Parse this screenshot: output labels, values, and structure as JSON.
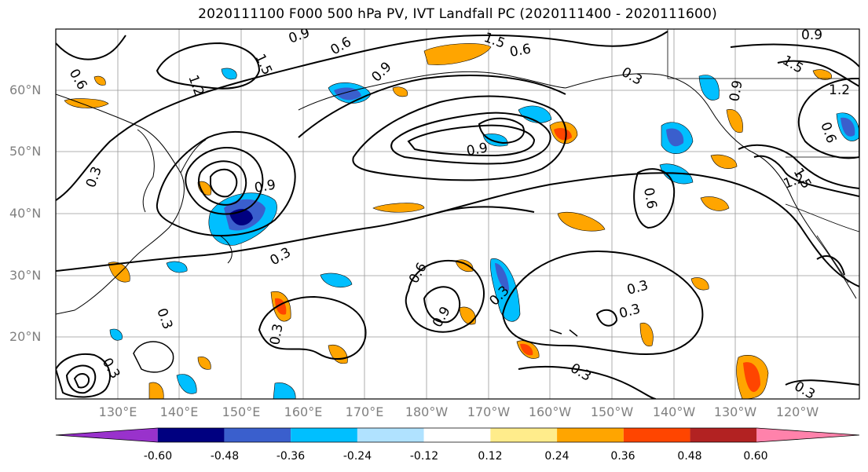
{
  "title": "2020111100 F000 500 hPa PV, IVT Landfall PC (2020111400 - 2020111600)",
  "lat_labels": [
    "60°N",
    "50°N",
    "40°N",
    "30°N",
    "20°N"
  ],
  "lon_labels": [
    "130°E",
    "140°E",
    "150°E",
    "160°E",
    "170°E",
    "180°W",
    "170°W",
    "160°W",
    "150°W",
    "140°W",
    "130°W",
    "120°W"
  ],
  "contour_labels": [
    "0.6",
    "0.3",
    "0.9",
    "1.2",
    "1.5"
  ],
  "colorbar": {
    "ticks": [
      "-0.60",
      "-0.48",
      "-0.36",
      "-0.24",
      "-0.12",
      "0.12",
      "0.24",
      "0.36",
      "0.48",
      "0.60"
    ],
    "colors": [
      "#9932cc",
      "#000080",
      "#3a5fcd",
      "#00bfff",
      "#b0e2ff",
      "#ffffff",
      "#ffec8b",
      "#ffa500",
      "#ff4500",
      "#b22222",
      "#ff82ab"
    ]
  }
}
